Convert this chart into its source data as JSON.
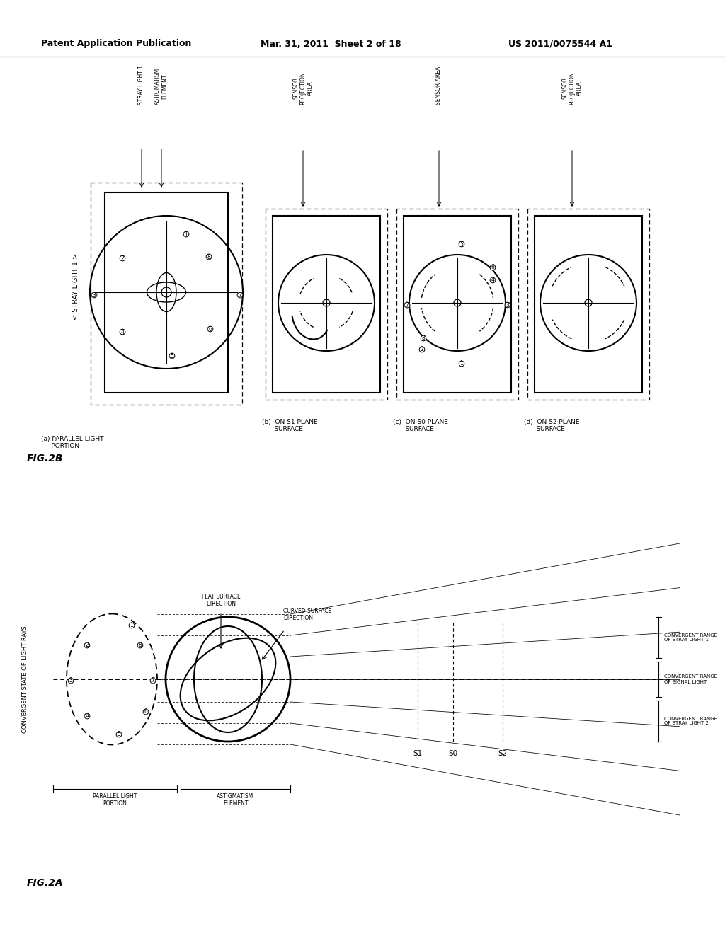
{
  "bg_color": "#ffffff",
  "header_left": "Patent Application Publication",
  "header_mid": "Mar. 31, 2011  Sheet 2 of 18",
  "header_right": "US 2011/0075544 A1",
  "fig2b_label": "FIG.2B",
  "fig2a_label": "FIG.2A",
  "label_a": "(a) PARALLEL LIGHT\n    PORTION",
  "label_b": "(b)  ON S1 PLANE\n     SURFACE",
  "label_c": "(c)  ON S0 PLANE\n     SURFACE",
  "label_d": "(d)  ON S2 PLANE\n     SURFACE",
  "stray_light_label": "< STRAY LIGHT 1 >",
  "convergent_label": "CONVERGENT STATE OF LIGHT RAYS"
}
